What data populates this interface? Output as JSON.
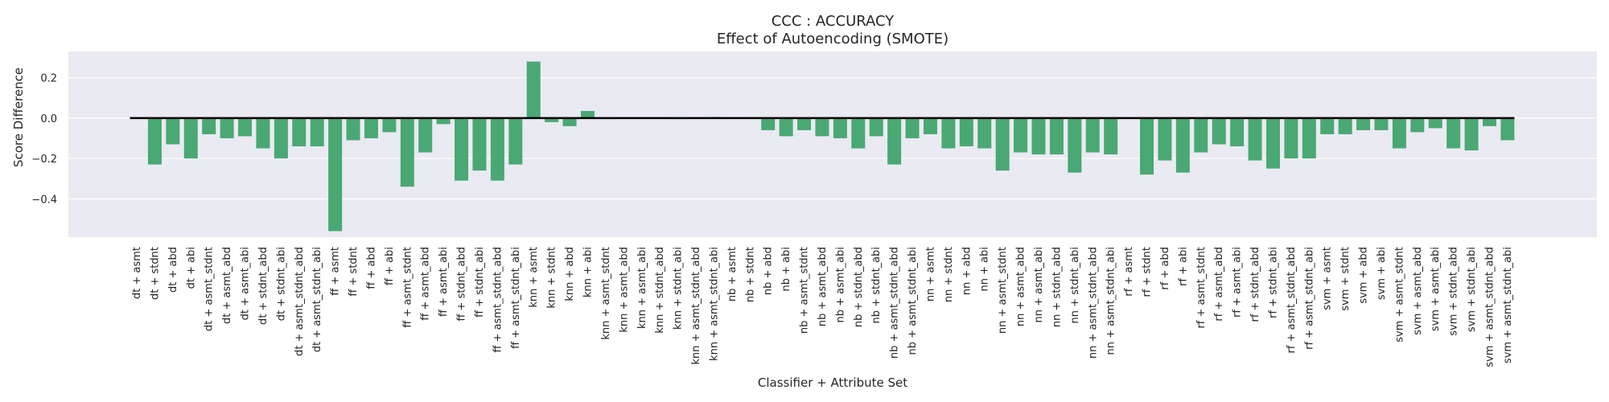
{
  "chart_data": {
    "type": "bar",
    "title": "CCC : ACCURACY",
    "subtitle": "Effect of Autoencoding (SMOTE)",
    "xlabel": "Classifier + Attribute Set",
    "ylabel": "Score Difference",
    "ylim": [
      -0.59,
      0.33
    ],
    "yticks": [
      -0.4,
      -0.2,
      0.0,
      0.2
    ],
    "ytick_labels": [
      "−0.4",
      "−0.2",
      "0.0",
      "0.2"
    ],
    "grid": true,
    "bar_color": "#4aa874",
    "background_color": "#eaeaf2",
    "zero_line_color": "#000000",
    "categories": [
      "dt + asmt",
      "dt + stdnt",
      "dt + abd",
      "dt + abi",
      "dt + asmt_stdnt",
      "dt + asmt_abd",
      "dt + asmt_abi",
      "dt + stdnt_abd",
      "dt + stdnt_abi",
      "dt + asmt_stdnt_abd",
      "dt + asmt_stdnt_abi",
      "ff + asmt",
      "ff + stdnt",
      "ff + abd",
      "ff + abi",
      "ff + asmt_stdnt",
      "ff + asmt_abd",
      "ff + asmt_abi",
      "ff + stdnt_abd",
      "ff + stdnt_abi",
      "ff + asmt_stdnt_abd",
      "ff + asmt_stdnt_abi",
      "knn + asmt",
      "knn + stdnt",
      "knn + abd",
      "knn + abi",
      "knn + asmt_stdnt",
      "knn + asmt_abd",
      "knn + asmt_abi",
      "knn + stdnt_abd",
      "knn + stdnt_abi",
      "knn + asmt_stdnt_abd",
      "knn + asmt_stdnt_abi",
      "nb + asmt",
      "nb + stdnt",
      "nb + abd",
      "nb + abi",
      "nb + asmt_stdnt",
      "nb + asmt_abd",
      "nb + asmt_abi",
      "nb + stdnt_abd",
      "nb + stdnt_abi",
      "nb + asmt_stdnt_abd",
      "nb + asmt_stdnt_abi",
      "nn + asmt",
      "nn + stdnt",
      "nn + abd",
      "nn + abi",
      "nn + asmt_stdnt",
      "nn + asmt_abd",
      "nn + asmt_abi",
      "nn + stdnt_abd",
      "nn + stdnt_abi",
      "nn + asmt_stdnt_abd",
      "nn + asmt_stdnt_abi",
      "rf + asmt",
      "rf + stdnt",
      "rf + abd",
      "rf + abi",
      "rf + asmt_stdnt",
      "rf + asmt_abd",
      "rf + asmt_abi",
      "rf + stdnt_abd",
      "rf + stdnt_abi",
      "rf + asmt_stdnt_abd",
      "rf + asmt_stdnt_abi",
      "svm + asmt",
      "svm + stdnt",
      "svm + abd",
      "svm + abi",
      "svm + asmt_stdnt",
      "svm + asmt_abd",
      "svm + asmt_abi",
      "svm + stdnt_abd",
      "svm + stdnt_abi",
      "svm + asmt_stdnt_abd",
      "svm + asmt_stdnt_abi"
    ],
    "values": [
      0.0,
      -0.23,
      -0.13,
      -0.2,
      -0.08,
      -0.1,
      -0.09,
      -0.15,
      -0.2,
      -0.14,
      -0.14,
      -0.56,
      -0.11,
      -0.1,
      -0.07,
      -0.34,
      -0.17,
      -0.03,
      -0.31,
      -0.26,
      -0.31,
      -0.23,
      0.28,
      -0.02,
      -0.04,
      0.035,
      -0.005,
      0.0,
      0.0,
      0.0,
      -0.005,
      0.0,
      0.005,
      0.0,
      0.0,
      -0.06,
      -0.09,
      -0.06,
      -0.09,
      -0.1,
      -0.15,
      -0.09,
      -0.23,
      -0.1,
      -0.08,
      -0.15,
      -0.14,
      -0.15,
      -0.26,
      -0.17,
      -0.18,
      -0.18,
      -0.27,
      -0.17,
      -0.18,
      0.0,
      -0.28,
      -0.21,
      -0.27,
      -0.17,
      -0.13,
      -0.14,
      -0.21,
      -0.25,
      -0.2,
      -0.2,
      -0.08,
      -0.08,
      -0.06,
      -0.06,
      -0.15,
      -0.07,
      -0.05,
      -0.15,
      -0.16,
      -0.04,
      -0.11
    ]
  }
}
